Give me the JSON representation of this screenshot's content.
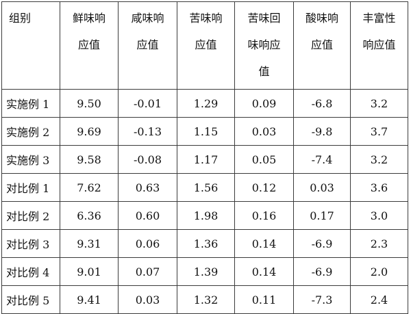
{
  "table": {
    "headers": [
      {
        "lines": [
          "组别"
        ]
      },
      {
        "lines": [
          "鲜味响",
          "应值"
        ]
      },
      {
        "lines": [
          "咸味响",
          "应值"
        ]
      },
      {
        "lines": [
          "苦味响",
          "应值"
        ]
      },
      {
        "lines": [
          "苦味回",
          "味响应",
          "值"
        ]
      },
      {
        "lines": [
          "酸味响",
          "应值"
        ]
      },
      {
        "lines": [
          "丰富性",
          "响应值"
        ]
      }
    ],
    "rows": [
      [
        "实施例 1",
        "9.50",
        "-0.01",
        "1.29",
        "0.09",
        "-6.8",
        "3.2"
      ],
      [
        "实施例 2",
        "9.69",
        "-0.13",
        "1.15",
        "0.03",
        "-9.8",
        "3.7"
      ],
      [
        "实施例 3",
        "9.58",
        "-0.08",
        "1.17",
        "0.05",
        "-7.4",
        "3.2"
      ],
      [
        "对比例 1",
        "7.62",
        "0.63",
        "1.56",
        "0.12",
        "0.03",
        "3.6"
      ],
      [
        "对比例 2",
        "6.36",
        "0.60",
        "1.98",
        "0.16",
        "0.17",
        "3.0"
      ],
      [
        "对比例 3",
        "9.31",
        "0.06",
        "1.36",
        "0.14",
        "-6.9",
        "2.3"
      ],
      [
        "对比例 4",
        "9.01",
        "0.07",
        "1.39",
        "0.14",
        "-6.9",
        "2.0"
      ],
      [
        "对比例 5",
        "9.41",
        "0.03",
        "1.32",
        "0.11",
        "-7.3",
        "2.4"
      ]
    ]
  }
}
